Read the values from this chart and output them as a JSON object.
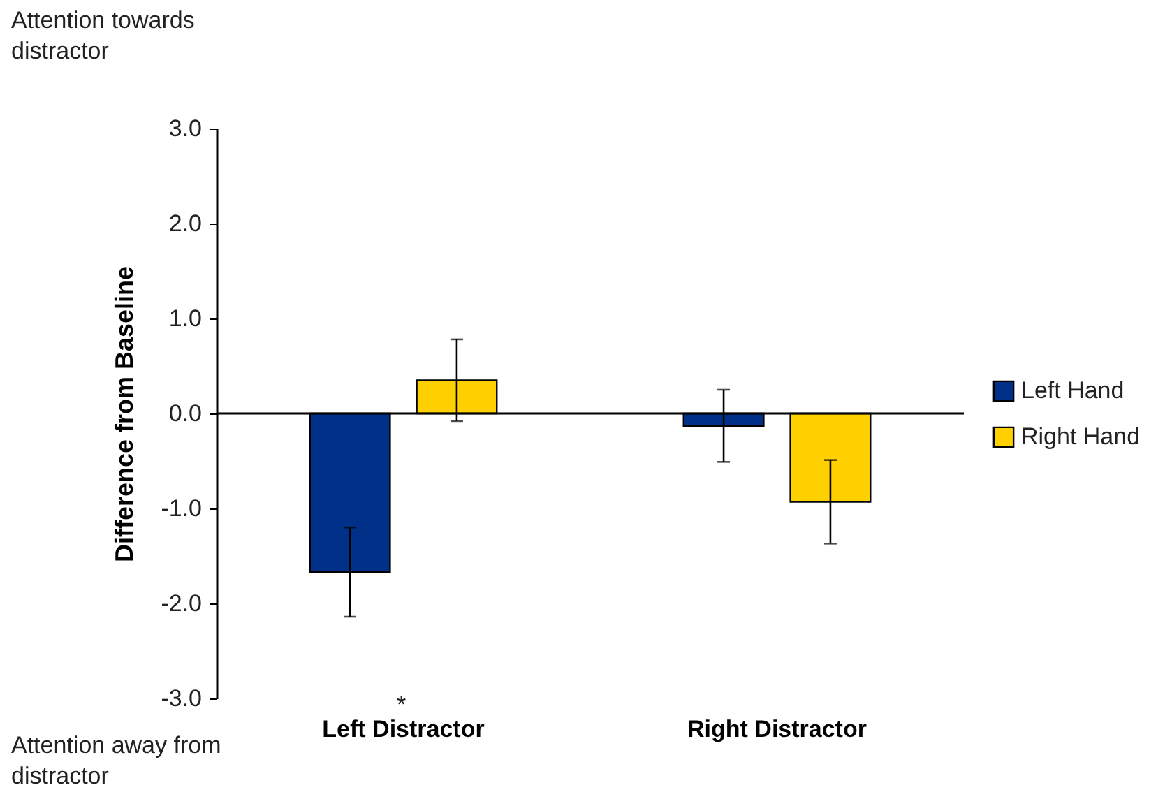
{
  "chart_data": {
    "type": "bar",
    "ylabel": "Difference from Baseline",
    "categories": [
      "Left Distractor",
      "Right Distractor"
    ],
    "series": [
      {
        "name": "Left Hand",
        "color": "#003087",
        "values": [
          -1.67,
          -0.13
        ],
        "errors": [
          0.47,
          0.38
        ]
      },
      {
        "name": "Right Hand",
        "color": "#ffd000",
        "values": [
          0.35,
          -0.93
        ],
        "errors": [
          0.43,
          0.44
        ]
      }
    ],
    "ylim": [
      -3,
      3
    ],
    "yticks": [
      {
        "value": -3,
        "label": "-3.0"
      },
      {
        "value": -2,
        "label": "-2.0"
      },
      {
        "value": -1,
        "label": "-1.0"
      },
      {
        "value": 0,
        "label": "0.0"
      },
      {
        "value": 1,
        "label": "1.0"
      },
      {
        "value": 2,
        "label": "2.0"
      },
      {
        "value": 3,
        "label": "3.0"
      }
    ],
    "legend": "right",
    "grid": false,
    "ref_lines": [
      {
        "axis": "y",
        "value": 0,
        "color": "#000000"
      }
    ],
    "annotations": [
      "Attention towards distractor",
      "Attention away from distractor",
      "*"
    ]
  }
}
